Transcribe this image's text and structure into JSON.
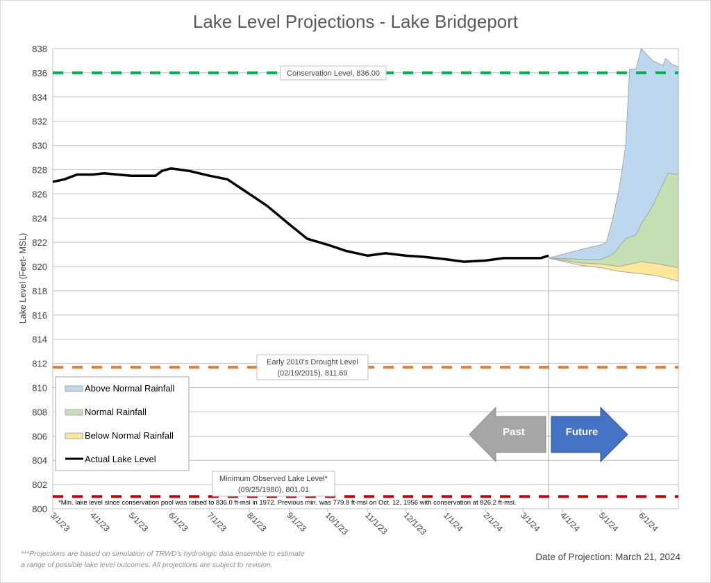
{
  "chart_data": {
    "type": "area",
    "title": "Lake Level Projections - Lake Bridgeport",
    "xlabel": "",
    "ylabel": "Lake Level (Feet- MSL)",
    "ylim": [
      800,
      838
    ],
    "yticks": [
      "800",
      "802",
      "804",
      "806",
      "808",
      "810",
      "812",
      "814",
      "816",
      "818",
      "820",
      "822",
      "824",
      "826",
      "828",
      "830",
      "832",
      "834",
      "836",
      "838"
    ],
    "xlim": [
      "2023-03-01",
      "2024-06-30"
    ],
    "xticks": [
      "3/1/23",
      "4/1/23",
      "5/1/23",
      "6/1/23",
      "7/1/23",
      "8/1/23",
      "9/1/23",
      "10/1/23",
      "11/1/23",
      "12/1/23",
      "1/1/24",
      "2/1/24",
      "3/1/24",
      "4/1/24",
      "5/1/24",
      "6/1/24"
    ],
    "xtick_dates": [
      "2023-03-01",
      "2023-04-01",
      "2023-05-01",
      "2023-06-01",
      "2023-07-01",
      "2023-08-01",
      "2023-09-01",
      "2023-10-01",
      "2023-11-01",
      "2023-12-01",
      "2024-01-01",
      "2024-02-01",
      "2024-03-01",
      "2024-04-01",
      "2024-05-01",
      "2024-06-01"
    ],
    "grid": true,
    "legend_position": "bottom-left",
    "legend": [
      "Above Normal Rainfall",
      "Normal Rainfall",
      "Below Normal Rainfall",
      "Actual Lake Level"
    ],
    "colors": {
      "above": "#bdd7ee",
      "normal": "#c5e0b4",
      "below": "#ffe699",
      "actual": "#000000",
      "band_edge": "#a6a6a6",
      "conservation": "#00b050",
      "drought": "#ed7d31",
      "minimum": "#c00000",
      "past_arrow": "#a6a6a6",
      "future_arrow": "#4472c4"
    },
    "series": [
      {
        "name": "Actual Lake Level",
        "x": [
          "2023-03-01",
          "2023-03-10",
          "2023-03-20",
          "2023-04-01",
          "2023-04-10",
          "2023-05-01",
          "2023-05-10",
          "2023-05-20",
          "2023-05-25",
          "2023-06-01",
          "2023-06-15",
          "2023-07-01",
          "2023-07-15",
          "2023-08-01",
          "2023-08-15",
          "2023-09-01",
          "2023-09-15",
          "2023-10-01",
          "2023-10-15",
          "2023-11-01",
          "2023-11-15",
          "2023-12-01",
          "2023-12-15",
          "2024-01-01",
          "2024-01-15",
          "2024-02-01",
          "2024-02-15",
          "2024-03-01",
          "2024-03-15",
          "2024-03-21"
        ],
        "y": [
          827.0,
          827.2,
          827.6,
          827.6,
          827.7,
          827.5,
          827.5,
          827.5,
          827.9,
          828.1,
          827.9,
          827.5,
          827.2,
          826.0,
          825.0,
          823.5,
          822.3,
          821.8,
          821.3,
          820.9,
          821.1,
          820.9,
          820.8,
          820.6,
          820.4,
          820.5,
          820.7,
          820.7,
          820.7,
          820.9
        ]
      },
      {
        "name": "Above Normal Rainfall",
        "x": [
          "2024-03-21",
          "2024-04-15",
          "2024-05-01",
          "2024-05-05",
          "2024-05-10",
          "2024-05-15",
          "2024-05-20",
          "2024-05-23",
          "2024-05-28",
          "2024-06-01",
          "2024-06-10",
          "2024-06-18",
          "2024-06-20",
          "2024-06-25",
          "2024-06-30"
        ],
        "y": [
          820.7,
          821.4,
          821.8,
          822.0,
          824.0,
          826.5,
          830.0,
          836.3,
          836.3,
          838.5,
          837.0,
          836.6,
          837.2,
          836.7,
          836.5
        ]
      },
      {
        "name": "Normal Rainfall",
        "x": [
          "2024-03-21",
          "2024-04-15",
          "2024-05-01",
          "2024-05-10",
          "2024-05-20",
          "2024-05-28",
          "2024-06-01",
          "2024-06-10",
          "2024-06-18",
          "2024-06-22",
          "2024-06-30"
        ],
        "y": [
          820.7,
          820.6,
          820.6,
          821.0,
          822.3,
          822.6,
          823.5,
          825.0,
          826.8,
          827.7,
          827.6
        ]
      },
      {
        "name": "Below Normal Rainfall",
        "x": [
          "2024-03-21",
          "2024-04-15",
          "2024-05-01",
          "2024-05-15",
          "2024-06-01",
          "2024-06-15",
          "2024-06-30"
        ],
        "y": [
          820.7,
          820.3,
          820.2,
          820.0,
          820.4,
          820.2,
          819.9
        ]
      },
      {
        "name": "Below Normal Rainfall (low)",
        "x": [
          "2024-03-21",
          "2024-04-15",
          "2024-05-01",
          "2024-05-15",
          "2024-06-01",
          "2024-06-15",
          "2024-06-30"
        ],
        "y": [
          820.7,
          820.1,
          819.9,
          819.6,
          819.4,
          819.2,
          818.8
        ]
      }
    ],
    "reference_lines": [
      {
        "key": "conservation",
        "y": 836.0,
        "label": "Conservation Level, 836.00"
      },
      {
        "key": "drought",
        "y": 811.69,
        "label_line1": "Early 2010's Drought Level",
        "label_line2": "(02/19/2015), 811.69"
      },
      {
        "key": "minimum",
        "y": 801.01,
        "label_line1": "Minimum Observed Lake Level*",
        "label_line2": "(09/25/1980), 801.01"
      }
    ],
    "projection_date_line": "2024-03-21",
    "annotations": {
      "past": "Past",
      "future": "Future",
      "min_note": "*Min. lake level since conservation pool was raised to 836.0 ft-msl in 1972.  Previous min. was 779.8 ft-msl on Oct. 12, 1956 with conservation at 826.2 ft-msl."
    }
  },
  "footer": {
    "note_line1": "***Projections are based on simulation of TRWD's hydrologic data ensemble to estimate",
    "note_line2": "a range of possible lake level outcomes.  All projections are subject to revision.",
    "projection_date": "Date of Projection: March 21, 2024"
  }
}
